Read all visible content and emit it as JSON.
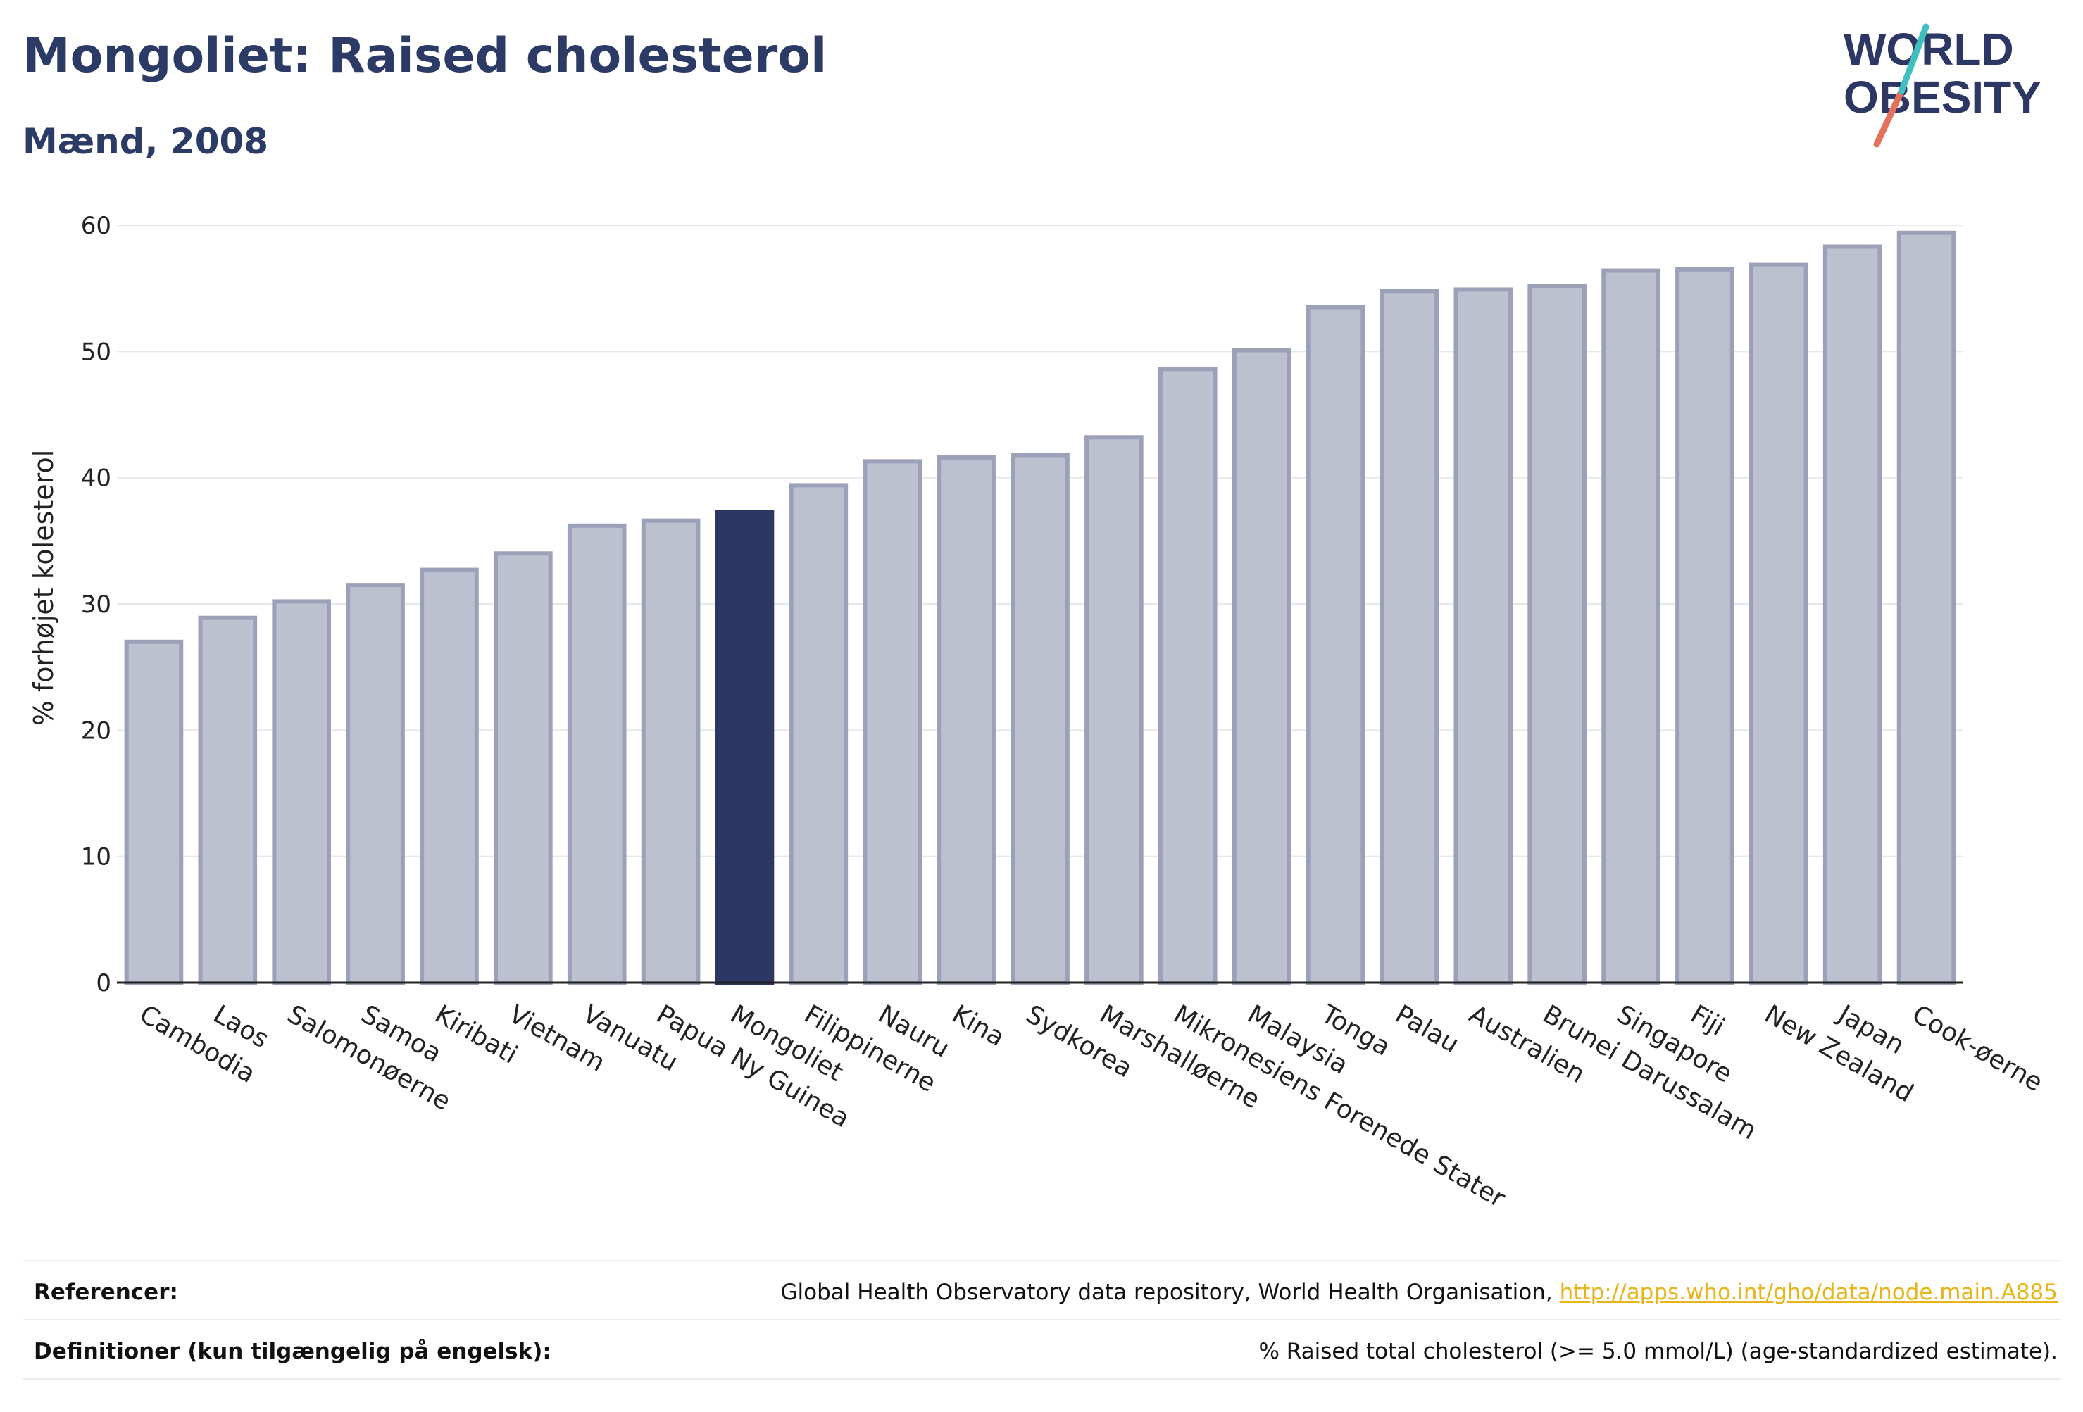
{
  "header": {
    "title": "Mongoliet: Raised cholesterol",
    "subtitle": "Mænd, 2008"
  },
  "logo": {
    "line1": "WORLD",
    "line2": "OBESITY"
  },
  "chart_data": {
    "type": "bar",
    "ylabel": "% forhøjet kolesterol",
    "xlabel": "",
    "ylim": [
      0,
      60
    ],
    "yticks": [
      0,
      10,
      20,
      30,
      40,
      50,
      60
    ],
    "grid": true,
    "highlight": "Mongoliet",
    "colors": {
      "bar": "#bdc1cf",
      "bar_edge": "#9ba1b8",
      "highlight": "#2c3764",
      "grid": "#e6e8ee"
    },
    "categories": [
      "Cambodia",
      "Laos",
      "Salomonøerne",
      "Samoa",
      "Kiribati",
      "Vietnam",
      "Vanuatu",
      "Papua Ny Guinea",
      "Mongoliet",
      "Filippinerne",
      "Nauru",
      "Kina",
      "Sydkorea",
      "Marshalløerne",
      "Mikronesiens Forenede Stater",
      "Malaysia",
      "Tonga",
      "Palau",
      "Australien",
      "Brunei Darussalam",
      "Singapore",
      "Fiji",
      "New Zealand",
      "Japan",
      "Cook-øerne"
    ],
    "values": [
      27.0,
      28.9,
      30.2,
      31.5,
      32.7,
      34.0,
      36.2,
      36.6,
      37.3,
      39.4,
      41.3,
      41.6,
      41.8,
      43.2,
      48.6,
      50.1,
      53.5,
      54.8,
      54.9,
      55.2,
      56.4,
      56.5,
      56.9,
      58.3,
      59.4
    ]
  },
  "footer": {
    "references_label": "Referencer:",
    "references_text": "Global Health Observatory data repository, World Health Organisation, ",
    "references_link": "http://apps.who.int/gho/data/node.main.A885",
    "definitions_label": "Definitioner (kun tilgængelig på engelsk):",
    "definitions_text": "% Raised total cholesterol (>= 5.0 mmol/L) (age-standardized estimate)."
  }
}
